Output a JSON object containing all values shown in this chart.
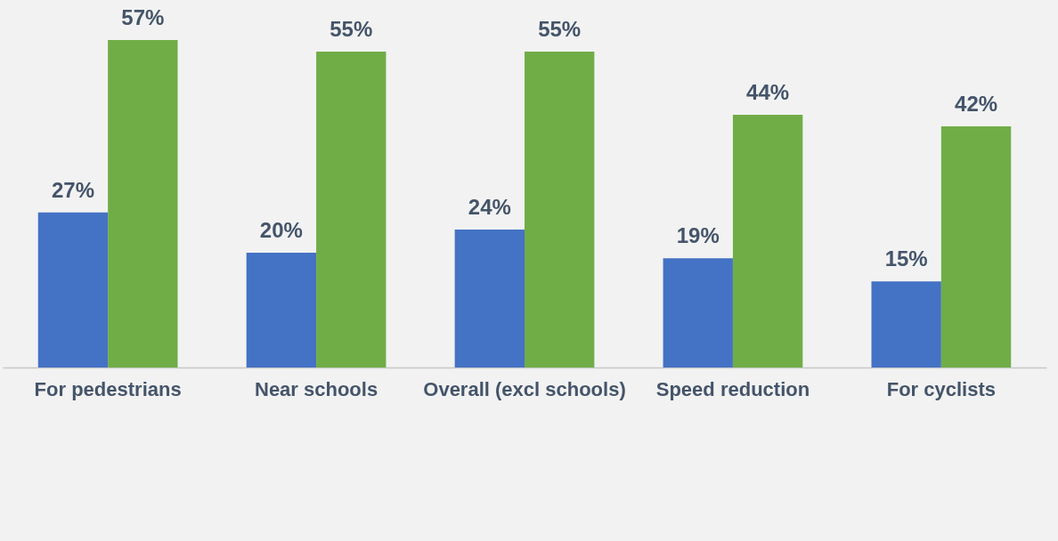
{
  "chart_data": {
    "type": "bar",
    "categories": [
      "For pedestrians",
      "Near schools",
      "Overall (excl schools)",
      "Speed reduction",
      "For cyclists"
    ],
    "series": [
      {
        "color": "#4472c4",
        "values": [
          27,
          20,
          24,
          19,
          15
        ],
        "value_labels": [
          "27%",
          "20%",
          "24%",
          "19%",
          "15%"
        ]
      },
      {
        "color": "#70ad47",
        "values": [
          57,
          55,
          55,
          44,
          42
        ],
        "value_labels": [
          "57%",
          "55%",
          "55%",
          "44%",
          "42%"
        ]
      }
    ],
    "legend": false
  }
}
